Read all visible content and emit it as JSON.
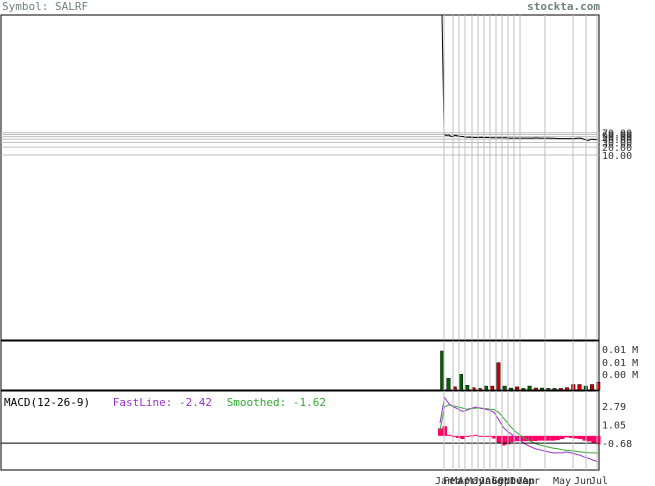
{
  "header": {
    "symbol_text": "Symbol: SALRF",
    "site": "stockta.com"
  },
  "colors": {
    "grid": "#bfbfbf",
    "frame": "#000000",
    "price_line": "#000000",
    "vol_up": "#006400",
    "vol_down": "#cc0000",
    "fast_line": "#9933cc",
    "smoothed_line": "#33aa33",
    "histogram": "#ff0066"
  },
  "macd": {
    "title": "MACD(12-26-9)",
    "fast_label": "FastLine: -2.42",
    "smoothed_label": "Smoothed: -1.62"
  },
  "chart_data": {
    "type": "line",
    "price_axis": {
      "scale": "log",
      "ticks": [
        70,
        60,
        50,
        40,
        30,
        20,
        10
      ],
      "tick_labels": [
        "70.00",
        "60.00",
        "50.00",
        "40.00",
        "30.00",
        "20.00",
        "10.00"
      ],
      "top_value": 2000000
    },
    "price_series": [
      2000000,
      60,
      55,
      58,
      52,
      50,
      56,
      54,
      52,
      51,
      50,
      48,
      47,
      48,
      47,
      46,
      46,
      46,
      47,
      46,
      46,
      46,
      46,
      45,
      45,
      45,
      45,
      45,
      45,
      45,
      45,
      44,
      44,
      44,
      44,
      44,
      44,
      44,
      44,
      44,
      44,
      44,
      44,
      44,
      45,
      44,
      44,
      44,
      44,
      44,
      44,
      43,
      43,
      43,
      42,
      42,
      42,
      42,
      42,
      42,
      42,
      42,
      42,
      43,
      44,
      44,
      41,
      38,
      36,
      37,
      40,
      39,
      38,
      40
    ],
    "volume_axis": {
      "tick_labels": [
        "0.01 M",
        "0.01 M",
        "0.00 M"
      ]
    },
    "volume_series": [
      {
        "v": 1.0,
        "up": true
      },
      {
        "v": 0.3,
        "up": true
      },
      {
        "v": 0.08,
        "up": false
      },
      {
        "v": 0.4,
        "up": true
      },
      {
        "v": 0.12,
        "up": true
      },
      {
        "v": 0.06,
        "up": false
      },
      {
        "v": 0.04,
        "up": false
      },
      {
        "v": 0.1,
        "up": true
      },
      {
        "v": 0.1,
        "up": false
      },
      {
        "v": 0.7,
        "up": false
      },
      {
        "v": 0.1,
        "up": true
      },
      {
        "v": 0.05,
        "up": true
      },
      {
        "v": 0.08,
        "up": false
      },
      {
        "v": 0.04,
        "up": true
      },
      {
        "v": 0.1,
        "up": true
      },
      {
        "v": 0.05,
        "up": false
      },
      {
        "v": 0.05,
        "up": true
      },
      {
        "v": 0.04,
        "up": true
      },
      {
        "v": 0.04,
        "up": true
      },
      {
        "v": 0.04,
        "up": false
      },
      {
        "v": 0.06,
        "up": false
      },
      {
        "v": 0.14,
        "up": false
      },
      {
        "v": 0.14,
        "up": false
      },
      {
        "v": 0.1,
        "up": true
      },
      {
        "v": 0.14,
        "up": false
      },
      {
        "v": 0.2,
        "up": false
      }
    ],
    "macd_axis": {
      "ticks": [
        2.79,
        1.05,
        -0.68
      ],
      "tick_labels": [
        "2.79",
        "1.05",
        "-0.68"
      ],
      "range": [
        -3.2,
        4.2
      ]
    },
    "fast_series": [
      1.2,
      3.6,
      3.0,
      2.7,
      2.5,
      2.3,
      2.4,
      2.6,
      2.7,
      2.6,
      2.5,
      2.4,
      2.2,
      1.5,
      0.8,
      0.4,
      0.1,
      -0.2,
      -0.5,
      -0.8,
      -1.0,
      -1.2,
      -1.3,
      -1.4,
      -1.5,
      -1.6,
      -1.6,
      -1.6,
      -1.5,
      -1.6,
      -1.7,
      -1.8,
      -2.0,
      -2.1,
      -2.3,
      -2.42
    ],
    "smoothed_series": [
      0.5,
      2.7,
      2.9,
      2.8,
      2.7,
      2.6,
      2.5,
      2.55,
      2.6,
      2.6,
      2.55,
      2.5,
      2.45,
      2.2,
      1.7,
      1.2,
      0.7,
      0.3,
      0.0,
      -0.3,
      -0.5,
      -0.7,
      -0.85,
      -0.95,
      -1.05,
      -1.15,
      -1.2,
      -1.3,
      -1.35,
      -1.4,
      -1.45,
      -1.5,
      -1.55,
      -1.58,
      -1.6,
      -1.62
    ],
    "histogram_series": [
      0.7,
      0.9,
      0.1,
      -0.1,
      -0.2,
      -0.3,
      -0.1,
      0.05,
      0.1,
      0.0,
      -0.05,
      -0.1,
      -0.25,
      -0.7,
      -0.9,
      -0.8,
      -0.6,
      -0.5,
      -0.5,
      -0.5,
      -0.5,
      -0.5,
      -0.45,
      -0.45,
      -0.45,
      -0.45,
      -0.4,
      -0.3,
      -0.15,
      -0.2,
      -0.25,
      -0.3,
      -0.45,
      -0.52,
      -0.7,
      -0.8
    ],
    "x_labels": [
      "Jan",
      "Feb",
      "Mar",
      "Apr",
      "May",
      "Jun",
      "Jul",
      "Aug",
      "Sep",
      "Oct",
      "Nov",
      "Dec",
      "Jan",
      "Apr",
      "May",
      "Jun",
      "Jul"
    ],
    "grid": true
  }
}
